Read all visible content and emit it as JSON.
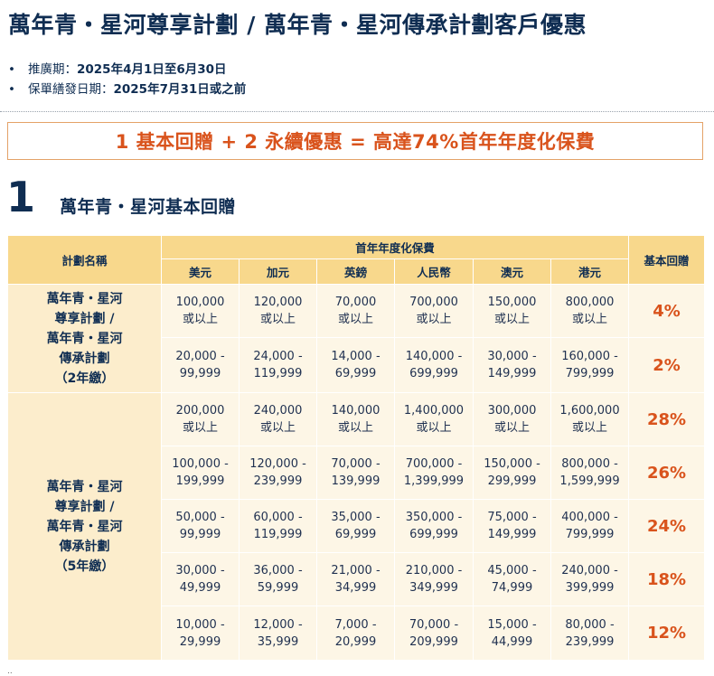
{
  "title": "萬年青・星河尊享計劃 / 萬年青・星河傳承計劃客戶優惠",
  "bullets": [
    {
      "label": "推廣期：",
      "value": "2025年4月1日至6月30日"
    },
    {
      "label": "保單繕發日期：",
      "value": "2025年7月31日或之前"
    }
  ],
  "banner": "1 基本回贈 + 2 永續優惠 = 高達74%首年年度化保費",
  "section": {
    "number": "1",
    "title": "萬年青・星河基本回贈"
  },
  "table": {
    "header_plan": "計劃名稱",
    "header_premium": "首年年度化保費",
    "header_rebate": "基本回贈",
    "currencies": [
      "美元",
      "加元",
      "英鎊",
      "人民幣",
      "澳元",
      "港元"
    ],
    "groups": [
      {
        "plan": [
          "萬年青・星河",
          "尊享計劃 /",
          "萬年青・星河",
          "傳承計劃",
          "（2年繳）"
        ],
        "rows": [
          {
            "cells": [
              [
                "100,000",
                "或以上"
              ],
              [
                "120,000",
                "或以上"
              ],
              [
                "70,000",
                "或以上"
              ],
              [
                "700,000",
                "或以上"
              ],
              [
                "150,000",
                "或以上"
              ],
              [
                "800,000",
                "或以上"
              ]
            ],
            "rebate": "4%"
          },
          {
            "cells": [
              [
                "20,000 -",
                "99,999"
              ],
              [
                "24,000 -",
                "119,999"
              ],
              [
                "14,000 -",
                "69,999"
              ],
              [
                "140,000 -",
                "699,999"
              ],
              [
                "30,000 -",
                "149,999"
              ],
              [
                "160,000 -",
                "799,999"
              ]
            ],
            "rebate": "2%"
          }
        ]
      },
      {
        "plan": [
          "萬年青・星河",
          "尊享計劃 /",
          "萬年青・星河",
          "傳承計劃",
          "（5年繳）"
        ],
        "rows": [
          {
            "cells": [
              [
                "200,000",
                "或以上"
              ],
              [
                "240,000",
                "或以上"
              ],
              [
                "140,000",
                "或以上"
              ],
              [
                "1,400,000",
                "或以上"
              ],
              [
                "300,000",
                "或以上"
              ],
              [
                "1,600,000",
                "或以上"
              ]
            ],
            "rebate": "28%"
          },
          {
            "cells": [
              [
                "100,000 -",
                "199,999"
              ],
              [
                "120,000 -",
                "239,999"
              ],
              [
                "70,000 -",
                "139,999"
              ],
              [
                "700,000 -",
                "1,399,999"
              ],
              [
                "150,000 -",
                "299,999"
              ],
              [
                "800,000 -",
                "1,599,999"
              ]
            ],
            "rebate": "26%"
          },
          {
            "cells": [
              [
                "50,000 -",
                "99,999"
              ],
              [
                "60,000 -",
                "119,999"
              ],
              [
                "35,000 -",
                "69,999"
              ],
              [
                "350,000 -",
                "699,999"
              ],
              [
                "75,000 -",
                "149,999"
              ],
              [
                "400,000 -",
                "799,999"
              ]
            ],
            "rebate": "24%"
          },
          {
            "cells": [
              [
                "30,000 -",
                "49,999"
              ],
              [
                "36,000 -",
                "59,999"
              ],
              [
                "21,000 -",
                "34,999"
              ],
              [
                "210,000 -",
                "349,999"
              ],
              [
                "45,000 -",
                "74,999"
              ],
              [
                "240,000 -",
                "399,999"
              ]
            ],
            "rebate": "18%"
          },
          {
            "cells": [
              [
                "10,000 -",
                "29,999"
              ],
              [
                "12,000 -",
                "35,999"
              ],
              [
                "7,000 -",
                "20,999"
              ],
              [
                "70,000 -",
                "209,999"
              ],
              [
                "15,000 -",
                "44,999"
              ],
              [
                "80,000 -",
                "239,999"
              ]
            ],
            "rebate": "12%"
          }
        ]
      }
    ]
  },
  "colors": {
    "navy": "#0f2d52",
    "accent": "#d9531c",
    "header_bg": "#f8d88c",
    "cell_bg": "#fdf6e6"
  }
}
